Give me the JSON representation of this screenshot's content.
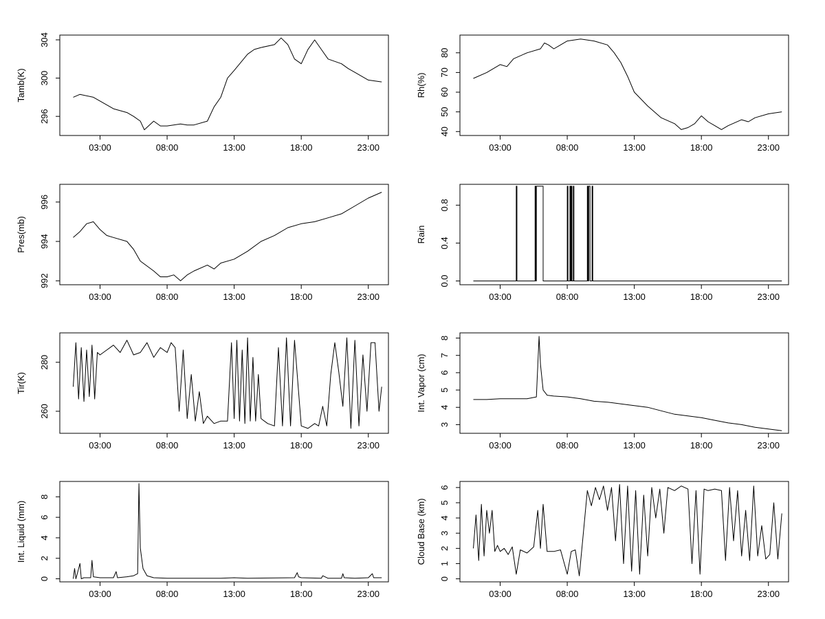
{
  "chart_data": [
    {
      "type": "line",
      "ylabel": "Tamb(K)",
      "xlabel": "",
      "x_ticks": [
        "03:00",
        "08:00",
        "13:00",
        "18:00",
        "23:00"
      ],
      "y_ticks": [
        296,
        300,
        304
      ],
      "xlim": [
        0,
        24.5
      ],
      "ylim": [
        294,
        304.5
      ],
      "x_units": "hours of day",
      "x": [
        1,
        1.5,
        2.5,
        3,
        4,
        5,
        5.5,
        6,
        6.3,
        7,
        7.5,
        8,
        9,
        9.5,
        10,
        11,
        11.5,
        12,
        12.5,
        13,
        14,
        14.5,
        15,
        16,
        16.5,
        17,
        17.5,
        18,
        18.5,
        19,
        19.5,
        20,
        21,
        21.5,
        22,
        23,
        24
      ],
      "values": [
        298.0,
        298.3,
        298.0,
        297.6,
        296.8,
        296.4,
        296.0,
        295.5,
        294.6,
        295.5,
        295.0,
        295.0,
        295.2,
        295.1,
        295.1,
        295.5,
        297.0,
        298.0,
        300.0,
        300.8,
        302.5,
        303.0,
        303.2,
        303.5,
        304.2,
        303.5,
        302.0,
        301.5,
        303.0,
        304.0,
        303.0,
        302.0,
        301.5,
        301.0,
        300.6,
        299.8,
        299.6
      ]
    },
    {
      "type": "line",
      "ylabel": "Rh(%)",
      "xlabel": "",
      "x_ticks": [
        "03:00",
        "08:00",
        "13:00",
        "18:00",
        "23:00"
      ],
      "y_ticks": [
        40,
        50,
        60,
        70,
        80
      ],
      "xlim": [
        0,
        24.5
      ],
      "ylim": [
        38,
        89
      ],
      "x_units": "hours of day",
      "x": [
        1,
        2,
        3,
        3.5,
        4,
        5,
        6,
        6.3,
        6.6,
        7,
        7.5,
        8,
        9,
        10,
        11,
        11.5,
        12,
        12.5,
        13,
        14,
        15,
        16,
        16.5,
        17,
        17.5,
        18,
        18.5,
        19,
        19.5,
        20,
        21,
        21.5,
        22,
        23,
        24
      ],
      "values": [
        67,
        70,
        74,
        73,
        77,
        80,
        82,
        85,
        84,
        82,
        84,
        86,
        87,
        86,
        84,
        80,
        75,
        68,
        60,
        53,
        47,
        44,
        41,
        42,
        44,
        48,
        45,
        43,
        41,
        43,
        46,
        45,
        47,
        49,
        50
      ]
    },
    {
      "type": "line",
      "ylabel": "Pres(mb)",
      "xlabel": "",
      "x_ticks": [
        "03:00",
        "08:00",
        "13:00",
        "18:00",
        "23:00"
      ],
      "y_ticks": [
        992,
        994,
        996
      ],
      "xlim": [
        0,
        24.5
      ],
      "ylim": [
        991.8,
        996.9
      ],
      "x_units": "hours of day",
      "x": [
        1,
        1.5,
        2,
        2.5,
        3,
        3.5,
        4,
        5,
        5.5,
        6,
        7,
        7.5,
        8,
        8.5,
        9,
        9.5,
        10,
        11,
        11.5,
        12,
        13,
        14,
        15,
        16,
        17,
        18,
        19,
        20,
        21,
        22,
        23,
        24
      ],
      "values": [
        994.2,
        994.5,
        994.9,
        995.0,
        994.6,
        994.3,
        994.2,
        994.0,
        993.6,
        993.0,
        992.5,
        992.2,
        992.2,
        992.3,
        992.0,
        992.3,
        992.5,
        992.8,
        992.6,
        992.9,
        993.1,
        993.5,
        994.0,
        994.3,
        994.7,
        994.9,
        995.0,
        995.2,
        995.4,
        995.8,
        996.2,
        996.5
      ]
    },
    {
      "type": "line",
      "ylabel": "Rain",
      "xlabel": "",
      "x_ticks": [
        "03:00",
        "08:00",
        "13:00",
        "18:00",
        "23:00"
      ],
      "y_ticks": [
        "0.0",
        "0.4",
        "0.8"
      ],
      "xlim": [
        0,
        24.5
      ],
      "ylim": [
        -0.04,
        1.02
      ],
      "x_units": "hours of day",
      "x": [
        1,
        4.2,
        4.2,
        4.25,
        4.25,
        5.6,
        5.6,
        5.65,
        5.65,
        5.7,
        5.7,
        6.2,
        6.2,
        8.0,
        8.0,
        8.05,
        8.05,
        8.2,
        8.2,
        8.25,
        8.25,
        8.3,
        8.3,
        8.35,
        8.35,
        8.45,
        8.45,
        8.5,
        8.5,
        9.5,
        9.5,
        9.55,
        9.55,
        9.6,
        9.6,
        9.7,
        9.7,
        9.85,
        9.85,
        9.9,
        9.9,
        24
      ],
      "values": [
        0,
        0,
        1,
        1,
        0,
        0,
        1,
        1,
        0,
        0,
        1,
        1,
        0,
        0,
        1,
        1,
        0,
        0,
        1,
        1,
        0,
        0,
        1,
        1,
        0,
        0,
        1,
        1,
        0,
        0,
        1,
        1,
        0,
        0,
        1,
        1,
        0,
        0,
        1,
        1,
        0,
        0
      ]
    },
    {
      "type": "line",
      "ylabel": "Tir(K)",
      "xlabel": "",
      "x_ticks": [
        "03:00",
        "08:00",
        "13:00",
        "18:00",
        "23:00"
      ],
      "y_ticks": [
        260,
        280
      ],
      "xlim": [
        0,
        24.5
      ],
      "ylim": [
        251,
        292
      ],
      "x_units": "hours of day",
      "x": [
        1,
        1.2,
        1.4,
        1.6,
        1.8,
        2.0,
        2.2,
        2.4,
        2.6,
        2.8,
        3.0,
        3.5,
        4.0,
        4.5,
        5.0,
        5.5,
        6.0,
        6.5,
        7.0,
        7.5,
        8.0,
        8.3,
        8.6,
        8.9,
        9.2,
        9.5,
        9.8,
        10.1,
        10.4,
        10.7,
        11.0,
        11.5,
        12.0,
        12.5,
        12.8,
        13.0,
        13.2,
        13.4,
        13.6,
        13.8,
        14.0,
        14.2,
        14.4,
        14.6,
        14.8,
        15.0,
        15.5,
        16.0,
        16.3,
        16.6,
        16.9,
        17.2,
        17.5,
        18.0,
        18.5,
        19.0,
        19.3,
        19.6,
        19.9,
        20.2,
        20.5,
        20.8,
        21.1,
        21.4,
        21.7,
        22.0,
        22.3,
        22.6,
        22.9,
        23.2,
        23.5,
        23.8,
        24.0
      ],
      "values": [
        270,
        288,
        265,
        286,
        264,
        285,
        266,
        287,
        265,
        284,
        283,
        285,
        287,
        284,
        289,
        283,
        284,
        288,
        282,
        286,
        284,
        288,
        286,
        260,
        285,
        257,
        275,
        256,
        268,
        255,
        258,
        255,
        256,
        256,
        288,
        257,
        289,
        256,
        285,
        255,
        290,
        256,
        282,
        256,
        275,
        257,
        255,
        254,
        286,
        254,
        290,
        254,
        289,
        254,
        253,
        255,
        254,
        262,
        254,
        275,
        288,
        276,
        262,
        290,
        253,
        289,
        254,
        283,
        260,
        288,
        288,
        260,
        270
      ]
    },
    {
      "type": "line",
      "ylabel": "Int. Vapor (cm)",
      "xlabel": "",
      "x_ticks": [
        "03:00",
        "08:00",
        "13:00",
        "18:00",
        "23:00"
      ],
      "y_ticks": [
        3,
        4,
        5,
        6,
        7,
        8
      ],
      "xlim": [
        0,
        24.5
      ],
      "ylim": [
        2.5,
        8.3
      ],
      "x_units": "hours of day",
      "x": [
        1,
        2,
        3,
        4,
        5,
        5.7,
        5.9,
        6.0,
        6.2,
        6.5,
        7,
        8,
        9,
        10,
        11,
        12,
        13,
        14,
        15,
        16,
        17,
        18,
        19,
        20,
        21,
        22,
        23,
        24
      ],
      "values": [
        4.45,
        4.45,
        4.5,
        4.5,
        4.5,
        4.6,
        8.1,
        6.5,
        5.0,
        4.7,
        4.65,
        4.6,
        4.5,
        4.35,
        4.3,
        4.2,
        4.1,
        4.0,
        3.8,
        3.6,
        3.5,
        3.4,
        3.25,
        3.1,
        3.0,
        2.85,
        2.75,
        2.65
      ]
    },
    {
      "type": "line",
      "ylabel": "Int. Liquid (mm)",
      "xlabel": "",
      "x_ticks": [
        "03:00",
        "08:00",
        "13:00",
        "18:00",
        "23:00"
      ],
      "y_ticks": [
        0,
        2,
        4,
        6,
        8
      ],
      "xlim": [
        0,
        24.5
      ],
      "ylim": [
        -0.3,
        9.5
      ],
      "x_units": "hours of day",
      "x": [
        1,
        1.1,
        1.2,
        1.3,
        1.5,
        1.6,
        1.8,
        2.3,
        2.4,
        2.5,
        3,
        4,
        4.2,
        4.3,
        5,
        5.5,
        5.8,
        5.9,
        6.0,
        6.2,
        6.5,
        7,
        8,
        10,
        12,
        13,
        14,
        17.5,
        17.7,
        17.8,
        18,
        19.5,
        19.6,
        20,
        21,
        21.1,
        21.2,
        22,
        23,
        23.3,
        23.4,
        24
      ],
      "values": [
        0,
        1.0,
        0,
        0.5,
        1.5,
        0,
        0.1,
        0.1,
        1.8,
        0.2,
        0.1,
        0.1,
        0.7,
        0.1,
        0.2,
        0.3,
        0.5,
        9.3,
        3.0,
        1.0,
        0.3,
        0.1,
        0.05,
        0.05,
        0.05,
        0.1,
        0.05,
        0.1,
        0.6,
        0.2,
        0.1,
        0.05,
        0.3,
        0.05,
        0.05,
        0.5,
        0.1,
        0.05,
        0.1,
        0.5,
        0.1,
        0.1
      ]
    },
    {
      "type": "line",
      "ylabel": "Cloud Base (km)",
      "xlabel": "",
      "x_ticks": [
        "03:00",
        "08:00",
        "13:00",
        "18:00",
        "23:00"
      ],
      "y_ticks": [
        0,
        1,
        2,
        3,
        4,
        5,
        6
      ],
      "xlim": [
        0,
        24.5
      ],
      "ylim": [
        -0.2,
        6.4
      ],
      "x_units": "hours of day",
      "x": [
        1,
        1.2,
        1.4,
        1.6,
        1.8,
        2.0,
        2.2,
        2.4,
        2.6,
        2.8,
        3.0,
        3.3,
        3.6,
        3.9,
        4.2,
        4.5,
        5.0,
        5.5,
        5.8,
        6.0,
        6.2,
        6.5,
        7.0,
        7.5,
        8.0,
        8.3,
        8.6,
        8.9,
        9.2,
        9.5,
        9.8,
        10.1,
        10.4,
        10.7,
        11.0,
        11.3,
        11.6,
        11.9,
        12.2,
        12.5,
        12.8,
        13.1,
        13.4,
        13.7,
        14.0,
        14.3,
        14.6,
        14.9,
        15.2,
        15.5,
        16.0,
        16.5,
        17.0,
        17.3,
        17.6,
        17.9,
        18.2,
        18.5,
        19.0,
        19.5,
        19.8,
        20.1,
        20.4,
        20.7,
        21.0,
        21.3,
        21.6,
        21.9,
        22.2,
        22.5,
        22.8,
        23.1,
        23.4,
        23.7,
        24.0
      ],
      "values": [
        2.0,
        4.2,
        1.2,
        4.9,
        1.5,
        4.5,
        3.0,
        4.5,
        1.8,
        2.2,
        1.8,
        2.0,
        1.6,
        2.1,
        0.3,
        1.9,
        1.7,
        2.1,
        4.5,
        2.0,
        4.9,
        1.8,
        1.8,
        1.9,
        0.3,
        1.8,
        1.9,
        0.2,
        3.0,
        5.8,
        4.8,
        6.0,
        5.2,
        6.1,
        4.5,
        6.0,
        2.5,
        6.2,
        1.0,
        6.1,
        0.5,
        5.8,
        0.3,
        5.5,
        1.5,
        6.0,
        4.0,
        5.9,
        3.0,
        6.0,
        5.8,
        6.1,
        5.9,
        1.0,
        5.8,
        0.3,
        5.9,
        5.8,
        5.9,
        5.8,
        1.2,
        6.0,
        2.5,
        5.8,
        1.5,
        4.5,
        1.2,
        6.1,
        1.5,
        3.5,
        1.3,
        1.6,
        5.0,
        1.3,
        4.3
      ]
    }
  ]
}
